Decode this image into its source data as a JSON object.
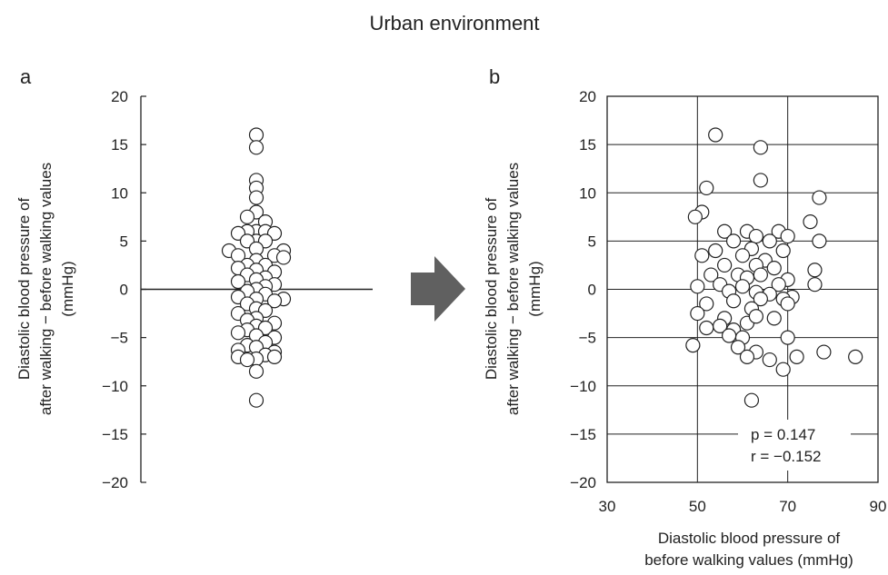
{
  "figure_title": "Urban environment",
  "colors": {
    "ink": "#222222",
    "marker_fill": "#ffffff",
    "arrow": "#606060",
    "background": "#ffffff"
  },
  "chart_data": [
    {
      "panel_label": "a",
      "type": "scatter",
      "subtype": "strip",
      "ylabel_lines": [
        "Diastolic blood pressure of",
        "after walking − before walking values",
        "(mmHg)"
      ],
      "ylim": [
        -20,
        20
      ],
      "yticks": [
        20,
        15,
        10,
        5,
        0,
        -5,
        -10,
        -15,
        -20
      ],
      "ytick_labels": [
        "20",
        "15",
        "10",
        "5",
        "0",
        "−5",
        "−10",
        "−15",
        "−20"
      ],
      "reference_line": 0,
      "grid": false,
      "points": [
        {
          "j": 0,
          "y": 16.0
        },
        {
          "j": 0,
          "y": 14.7
        },
        {
          "j": 0,
          "y": 11.3
        },
        {
          "j": 0,
          "y": 10.5
        },
        {
          "j": 0,
          "y": 9.5
        },
        {
          "j": 0,
          "y": 8.0
        },
        {
          "j": -1,
          "y": 7.5
        },
        {
          "j": 1,
          "y": 7.0
        },
        {
          "j": 0,
          "y": 6.0
        },
        {
          "j": -1,
          "y": 6.0
        },
        {
          "j": 1,
          "y": 6.0
        },
        {
          "j": -2,
          "y": 5.8
        },
        {
          "j": 2,
          "y": 5.8
        },
        {
          "j": 0,
          "y": 5.0
        },
        {
          "j": -1,
          "y": 5.0
        },
        {
          "j": 1,
          "y": 5.0
        },
        {
          "j": 0,
          "y": 4.2
        },
        {
          "j": -3,
          "y": 4.0
        },
        {
          "j": 3,
          "y": 4.0
        },
        {
          "j": -2,
          "y": 3.5
        },
        {
          "j": 2,
          "y": 3.5
        },
        {
          "j": 3,
          "y": 3.3
        },
        {
          "j": 0,
          "y": 3.0
        },
        {
          "j": -1,
          "y": 2.5
        },
        {
          "j": 1,
          "y": 2.5
        },
        {
          "j": -2,
          "y": 2.2
        },
        {
          "j": 0,
          "y": 2.0
        },
        {
          "j": 2,
          "y": 1.8
        },
        {
          "j": -1,
          "y": 1.5
        },
        {
          "j": 1,
          "y": 1.2
        },
        {
          "j": 0,
          "y": 1.0
        },
        {
          "j": -2,
          "y": 0.8
        },
        {
          "j": 2,
          "y": 0.5
        },
        {
          "j": 1,
          "y": 0.3
        },
        {
          "j": 0,
          "y": 0.0
        },
        {
          "j": -1,
          "y": -0.2
        },
        {
          "j": 1,
          "y": -0.5
        },
        {
          "j": -2,
          "y": -0.8
        },
        {
          "j": 3,
          "y": -1.0
        },
        {
          "j": 0,
          "y": -1.0
        },
        {
          "j": 2,
          "y": -1.2
        },
        {
          "j": -1,
          "y": -1.5
        },
        {
          "j": 0,
          "y": -2.0
        },
        {
          "j": 1,
          "y": -2.2
        },
        {
          "j": -2,
          "y": -2.5
        },
        {
          "j": 0,
          "y": -3.0
        },
        {
          "j": -1,
          "y": -3.2
        },
        {
          "j": 2,
          "y": -3.5
        },
        {
          "j": 0,
          "y": -3.8
        },
        {
          "j": 1,
          "y": -4.0
        },
        {
          "j": -1,
          "y": -4.2
        },
        {
          "j": -2,
          "y": -4.5
        },
        {
          "j": 0,
          "y": -4.8
        },
        {
          "j": 2,
          "y": -5.0
        },
        {
          "j": 1,
          "y": -5.5
        },
        {
          "j": -1,
          "y": -5.8
        },
        {
          "j": 0,
          "y": -6.0
        },
        {
          "j": -2,
          "y": -6.3
        },
        {
          "j": 2,
          "y": -6.5
        },
        {
          "j": 1,
          "y": -6.8
        },
        {
          "j": -2,
          "y": -7.0
        },
        {
          "j": 2,
          "y": -7.0
        },
        {
          "j": 0,
          "y": -7.2
        },
        {
          "j": -1,
          "y": -7.3
        },
        {
          "j": 0,
          "y": -8.5
        },
        {
          "j": 0,
          "y": -11.5
        }
      ]
    },
    {
      "panel_label": "b",
      "type": "scatter",
      "ylabel_lines": [
        "Diastolic blood pressure of",
        "after walking − before walking values",
        "(mmHg)"
      ],
      "xlabel_lines": [
        "Diastolic blood pressure of",
        "before walking values (mmHg)"
      ],
      "xlim": [
        30,
        90
      ],
      "ylim": [
        -20,
        20
      ],
      "xticks": [
        30,
        50,
        70,
        90
      ],
      "yticks": [
        20,
        15,
        10,
        5,
        0,
        -5,
        -10,
        -15,
        -20
      ],
      "ytick_labels": [
        "20",
        "15",
        "10",
        "5",
        "0",
        "−5",
        "−10",
        "−15",
        "−20"
      ],
      "grid": true,
      "annotation_lines": [
        "p = 0.147",
        "r  = −0.152"
      ],
      "points": [
        {
          "x": 54,
          "y": 16.0
        },
        {
          "x": 64,
          "y": 14.7
        },
        {
          "x": 52,
          "y": 10.5
        },
        {
          "x": 64,
          "y": 11.3
        },
        {
          "x": 77,
          "y": 9.5
        },
        {
          "x": 51,
          "y": 8.0
        },
        {
          "x": 49.5,
          "y": 7.5
        },
        {
          "x": 75,
          "y": 7.0
        },
        {
          "x": 56,
          "y": 6.0
        },
        {
          "x": 61,
          "y": 6.0
        },
        {
          "x": 68,
          "y": 6.0
        },
        {
          "x": 63,
          "y": 5.5
        },
        {
          "x": 70,
          "y": 5.5
        },
        {
          "x": 58,
          "y": 5.0
        },
        {
          "x": 66,
          "y": 5.0
        },
        {
          "x": 77,
          "y": 5.0
        },
        {
          "x": 54,
          "y": 4.0
        },
        {
          "x": 62,
          "y": 4.2
        },
        {
          "x": 69,
          "y": 4.0
        },
        {
          "x": 51,
          "y": 3.5
        },
        {
          "x": 60,
          "y": 3.5
        },
        {
          "x": 65,
          "y": 3.0
        },
        {
          "x": 56,
          "y": 2.5
        },
        {
          "x": 63,
          "y": 2.5
        },
        {
          "x": 67,
          "y": 2.2
        },
        {
          "x": 76,
          "y": 2.0
        },
        {
          "x": 53,
          "y": 1.5
        },
        {
          "x": 59,
          "y": 1.5
        },
        {
          "x": 61,
          "y": 1.2
        },
        {
          "x": 64,
          "y": 1.5
        },
        {
          "x": 70,
          "y": 1.0
        },
        {
          "x": 55,
          "y": 0.5
        },
        {
          "x": 60,
          "y": 0.3
        },
        {
          "x": 68,
          "y": 0.5
        },
        {
          "x": 76,
          "y": 0.5
        },
        {
          "x": 50,
          "y": 0.3
        },
        {
          "x": 57,
          "y": -0.2
        },
        {
          "x": 63,
          "y": -0.3
        },
        {
          "x": 66,
          "y": -0.5
        },
        {
          "x": 71,
          "y": -0.8
        },
        {
          "x": 69,
          "y": -1.0
        },
        {
          "x": 52,
          "y": -1.5
        },
        {
          "x": 58,
          "y": -1.2
        },
        {
          "x": 64,
          "y": -1.0
        },
        {
          "x": 70,
          "y": -1.5
        },
        {
          "x": 62,
          "y": -2.0
        },
        {
          "x": 50,
          "y": -2.5
        },
        {
          "x": 56,
          "y": -3.0
        },
        {
          "x": 61,
          "y": -3.5
        },
        {
          "x": 63,
          "y": -2.8
        },
        {
          "x": 67,
          "y": -3.0
        },
        {
          "x": 52,
          "y": -4.0
        },
        {
          "x": 55,
          "y": -3.8
        },
        {
          "x": 58,
          "y": -4.2
        },
        {
          "x": 60,
          "y": -5.0
        },
        {
          "x": 57,
          "y": -4.8
        },
        {
          "x": 70,
          "y": -5.0
        },
        {
          "x": 49,
          "y": -5.8
        },
        {
          "x": 59,
          "y": -6.0
        },
        {
          "x": 63,
          "y": -6.5
        },
        {
          "x": 78,
          "y": -6.5
        },
        {
          "x": 61,
          "y": -7.0
        },
        {
          "x": 66,
          "y": -7.3
        },
        {
          "x": 72,
          "y": -7.0
        },
        {
          "x": 69,
          "y": -8.3
        },
        {
          "x": 85,
          "y": -7.0
        },
        {
          "x": 62,
          "y": -11.5
        }
      ]
    }
  ]
}
